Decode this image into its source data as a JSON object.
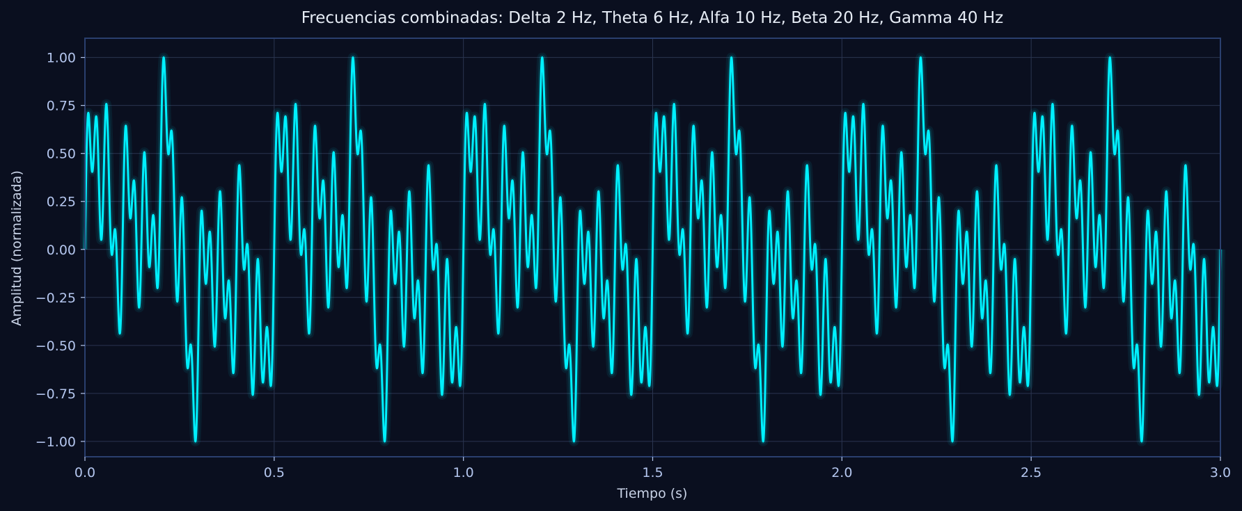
{
  "chart_data": {
    "type": "line",
    "title": "Frecuencias combinadas: Delta 2 Hz, Theta 6 Hz, Alfa 10 Hz, Beta 20 Hz, Gamma 40 Hz",
    "xlabel": "Tiempo (s)",
    "ylabel": "Amplitud (normalizada)",
    "xlim": [
      0,
      3
    ],
    "ylim": [
      -1.08,
      1.1
    ],
    "x_ticks": [
      0.0,
      0.5,
      1.0,
      1.5,
      2.0,
      2.5,
      3.0
    ],
    "x_tick_labels": [
      "0.0",
      "0.5",
      "1.0",
      "1.5",
      "2.0",
      "2.5",
      "3.0"
    ],
    "y_ticks": [
      1.0,
      0.75,
      0.5,
      0.25,
      0.0,
      -0.25,
      -0.5,
      -0.75,
      -1.0
    ],
    "y_tick_labels": [
      "1.00",
      "0.75",
      "0.50",
      "0.25",
      "0.00",
      "−0.25",
      "−0.50",
      "−0.75",
      "−1.00"
    ],
    "grid": true,
    "legend": "none",
    "series": [
      {
        "components": [
          {
            "frequency_hz": 2
          },
          {
            "frequency_hz": 6
          },
          {
            "frequency_hz": 10
          },
          {
            "frequency_hz": 20
          },
          {
            "frequency_hz": 40
          }
        ],
        "normalized": true
      }
    ]
  },
  "colors": {
    "background": "#0a0f1f",
    "axes_frame": "#2a3f6e",
    "grid": "#2b3550",
    "line": "#00f0ff",
    "line_glow": "#00f0ff",
    "title": "#e6ecf5",
    "axis_label": "#c8d2e6",
    "tick_label": "#b4c6ee"
  }
}
